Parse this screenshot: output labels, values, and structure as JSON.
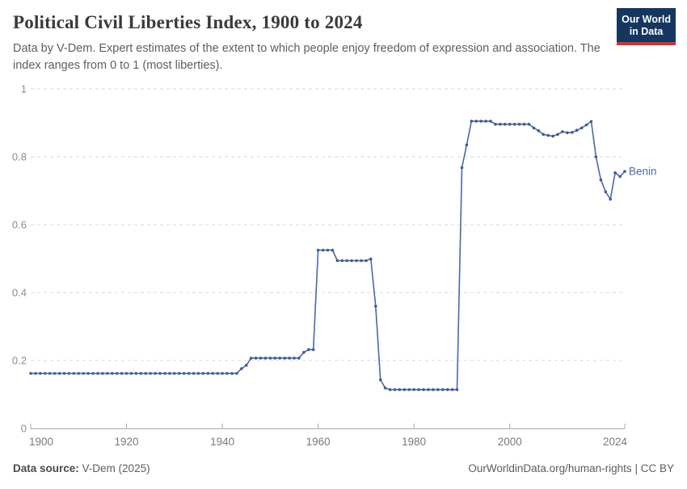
{
  "header": {
    "title": "Political Civil Liberties Index, 1900 to 2024",
    "subtitle": "Data by V-Dem. Expert estimates of the extent to which people enjoy freedom of expression and association. The index ranges from 0 to 1 (most liberties)."
  },
  "logo": {
    "line1": "Our World",
    "line2": "in Data",
    "bg_color": "#15365e",
    "accent_color": "#d0352b"
  },
  "footer": {
    "source_label": "Data source:",
    "source_value": "V-Dem (2025)",
    "credit": "OurWorldinData.org/human-rights",
    "separator": "|",
    "license": "CC BY"
  },
  "chart_data": {
    "type": "line",
    "title": "Political Civil Liberties Index, 1900 to 2024",
    "xlabel": "",
    "ylabel": "",
    "xlim": [
      1900,
      2024
    ],
    "ylim": [
      0,
      1
    ],
    "x_ticks": [
      1900,
      1920,
      1940,
      1960,
      1980,
      2000,
      2024
    ],
    "y_ticks": [
      0,
      0.2,
      0.4,
      0.6,
      0.8,
      1
    ],
    "grid": "horizontal-dashed",
    "legend_position": "end-of-line-label",
    "axis_color": "#a8a8a8",
    "gridline_color": "#dadada",
    "tick_label_color": "#7a7a7a",
    "series": [
      {
        "name": "Benin",
        "color": "#4a69a4",
        "marker_color": "#3e5c96",
        "x_start": 1900,
        "x_step": 1,
        "values": [
          0.162,
          0.162,
          0.162,
          0.162,
          0.162,
          0.162,
          0.162,
          0.162,
          0.162,
          0.162,
          0.162,
          0.162,
          0.162,
          0.162,
          0.162,
          0.162,
          0.162,
          0.162,
          0.162,
          0.162,
          0.162,
          0.162,
          0.162,
          0.162,
          0.162,
          0.162,
          0.162,
          0.162,
          0.162,
          0.162,
          0.162,
          0.162,
          0.162,
          0.162,
          0.162,
          0.162,
          0.162,
          0.162,
          0.162,
          0.162,
          0.162,
          0.162,
          0.162,
          0.162,
          0.176,
          0.186,
          0.207,
          0.207,
          0.207,
          0.207,
          0.207,
          0.207,
          0.207,
          0.207,
          0.207,
          0.207,
          0.207,
          0.224,
          0.232,
          0.232,
          0.525,
          0.525,
          0.525,
          0.525,
          0.494,
          0.494,
          0.494,
          0.494,
          0.494,
          0.494,
          0.494,
          0.499,
          0.36,
          0.143,
          0.119,
          0.114,
          0.114,
          0.114,
          0.114,
          0.114,
          0.114,
          0.114,
          0.114,
          0.114,
          0.114,
          0.114,
          0.114,
          0.114,
          0.114,
          0.114,
          0.768,
          0.835,
          0.905,
          0.905,
          0.905,
          0.905,
          0.905,
          0.896,
          0.896,
          0.896,
          0.896,
          0.896,
          0.896,
          0.896,
          0.896,
          0.885,
          0.877,
          0.866,
          0.863,
          0.861,
          0.866,
          0.874,
          0.871,
          0.872,
          0.878,
          0.885,
          0.894,
          0.904,
          0.8,
          0.732,
          0.697,
          0.675,
          0.753,
          0.742,
          0.757
        ]
      }
    ]
  }
}
